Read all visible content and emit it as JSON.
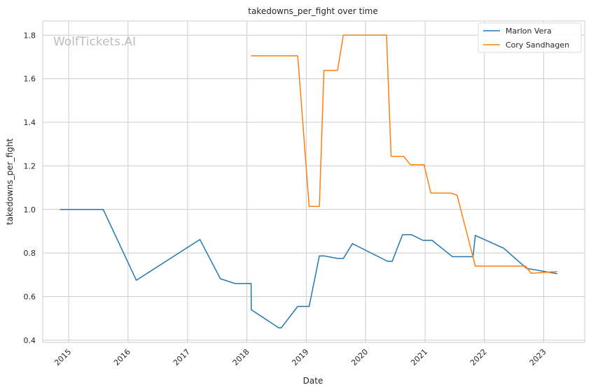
{
  "watermark": "WolfTickets.AI",
  "chart_data": {
    "type": "line",
    "title": "takedowns_per_fight over time",
    "xlabel": "Date",
    "ylabel": "takedowns_per_fight",
    "xlim": [
      "2014-07-25",
      "2023-09-10"
    ],
    "ylim": [
      0.39,
      1.865
    ],
    "x_ticks": [
      "2015",
      "2016",
      "2017",
      "2018",
      "2019",
      "2020",
      "2021",
      "2022",
      "2023"
    ],
    "y_ticks": [
      "0.4",
      "0.6",
      "0.8",
      "1.0",
      "1.2",
      "1.4",
      "1.6",
      "1.8"
    ],
    "grid": true,
    "legend_position": "top-right",
    "series": [
      {
        "name": "Marlon Vera",
        "color": "#1f77b4",
        "points": [
          [
            "2014-11-08",
            1.0
          ],
          [
            "2015-08-01",
            1.0
          ],
          [
            "2016-02-21",
            0.675
          ],
          [
            "2017-03-18",
            0.862
          ],
          [
            "2017-07-22",
            0.682
          ],
          [
            "2017-10-21",
            0.66
          ],
          [
            "2018-01-27",
            0.66
          ],
          [
            "2018-01-28",
            0.54
          ],
          [
            "2018-07-15",
            0.457
          ],
          [
            "2018-08-01",
            0.457
          ],
          [
            "2018-11-10",
            0.555
          ],
          [
            "2019-01-19",
            0.555
          ],
          [
            "2019-03-23",
            0.787
          ],
          [
            "2019-04-20",
            0.787
          ],
          [
            "2019-07-13",
            0.775
          ],
          [
            "2019-08-17",
            0.775
          ],
          [
            "2019-10-12",
            0.843
          ],
          [
            "2020-05-16",
            0.762
          ],
          [
            "2020-06-13",
            0.762
          ],
          [
            "2020-08-15",
            0.884
          ],
          [
            "2020-10-10",
            0.884
          ],
          [
            "2020-12-19",
            0.858
          ],
          [
            "2021-02-13",
            0.858
          ],
          [
            "2021-06-19",
            0.783
          ],
          [
            "2021-10-23",
            0.783
          ],
          [
            "2021-11-06",
            0.881
          ],
          [
            "2022-04-30",
            0.822
          ],
          [
            "2022-09-17",
            0.73
          ],
          [
            "2023-03-25",
            0.705
          ]
        ]
      },
      {
        "name": "Cory Sandhagen",
        "color": "#ff7f0e",
        "points": [
          [
            "2018-01-27",
            1.705
          ],
          [
            "2018-11-10",
            1.705
          ],
          [
            "2019-01-19",
            1.014
          ],
          [
            "2019-03-23",
            1.014
          ],
          [
            "2019-04-20",
            1.638
          ],
          [
            "2019-07-13",
            1.638
          ],
          [
            "2019-08-17",
            1.8
          ],
          [
            "2020-05-09",
            1.8
          ],
          [
            "2020-06-06",
            1.244
          ],
          [
            "2020-08-22",
            1.244
          ],
          [
            "2020-10-03",
            1.205
          ],
          [
            "2020-12-26",
            1.205
          ],
          [
            "2021-02-06",
            1.075
          ],
          [
            "2021-06-12",
            1.075
          ],
          [
            "2021-07-17",
            1.065
          ],
          [
            "2021-11-06",
            0.74
          ],
          [
            "2022-09-10",
            0.74
          ],
          [
            "2022-10-15",
            0.707
          ],
          [
            "2023-03-25",
            0.715
          ]
        ]
      }
    ]
  }
}
